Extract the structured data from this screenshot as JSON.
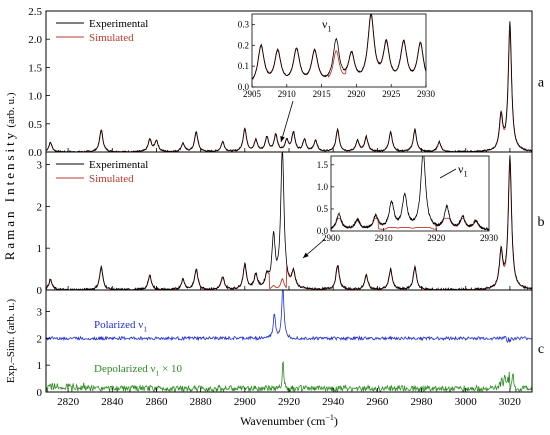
{
  "chart_data": [
    {
      "panel": "a",
      "type": "line",
      "xlim": [
        2810,
        3030
      ],
      "ylim": [
        0,
        2.5
      ],
      "yticks": [
        "0.0",
        "0.5",
        "1.0",
        "1.5",
        "2.0",
        "2.5"
      ],
      "ylabel": "(arb. u.)",
      "legend_position": "top-left",
      "series": [
        {
          "name": "Experimental",
          "color": "#000000"
        },
        {
          "name": "Simulated",
          "color": "#c0392b"
        }
      ],
      "peaks": [
        {
          "x": 2812,
          "y": 0.17
        },
        {
          "x": 2835,
          "y": 0.4
        },
        {
          "x": 2857,
          "y": 0.22
        },
        {
          "x": 2860,
          "y": 0.2
        },
        {
          "x": 2872,
          "y": 0.15
        },
        {
          "x": 2878,
          "y": 0.36
        },
        {
          "x": 2890,
          "y": 0.18
        },
        {
          "x": 2900,
          "y": 0.42
        },
        {
          "x": 2905,
          "y": 0.2
        },
        {
          "x": 2910,
          "y": 0.26
        },
        {
          "x": 2914,
          "y": 0.3
        },
        {
          "x": 2919,
          "y": 0.2
        },
        {
          "x": 2922,
          "y": 0.34
        },
        {
          "x": 2927,
          "y": 0.22
        },
        {
          "x": 2932,
          "y": 0.2
        },
        {
          "x": 2942,
          "y": 0.4
        },
        {
          "x": 2951,
          "y": 0.2
        },
        {
          "x": 2955,
          "y": 0.26
        },
        {
          "x": 2966,
          "y": 0.36
        },
        {
          "x": 2977,
          "y": 0.4
        },
        {
          "x": 2988,
          "y": 0.18
        },
        {
          "x": 3016,
          "y": 0.62
        },
        {
          "x": 3020,
          "y": 2.3
        }
      ],
      "inset": {
        "xlim": [
          2905,
          2930
        ],
        "ylim": [
          0,
          0.35
        ],
        "xticks": [
          "2905",
          "2910",
          "2915",
          "2920",
          "2925",
          "2930"
        ],
        "yticks": [
          "0.0",
          "0.1",
          "0.2",
          "0.3"
        ],
        "label": "ν",
        "label_sub": "1",
        "peaks": [
          {
            "x": 2906.3,
            "y": 0.19
          },
          {
            "x": 2908.7,
            "y": 0.16
          },
          {
            "x": 2911.4,
            "y": 0.17
          },
          {
            "x": 2914,
            "y": 0.16
          },
          {
            "x": 2917.1,
            "y": 0.21
          },
          {
            "x": 2919.3,
            "y": 0.14
          },
          {
            "x": 2922.1,
            "y": 0.33
          },
          {
            "x": 2924.3,
            "y": 0.19
          },
          {
            "x": 2926.8,
            "y": 0.2
          },
          {
            "x": 2929.2,
            "y": 0.2
          }
        ]
      }
    },
    {
      "panel": "b",
      "type": "line",
      "xlim": [
        2810,
        3030
      ],
      "ylim": [
        0,
        3.3
      ],
      "yticks": [
        "0",
        "1",
        "2",
        "3"
      ],
      "ylabel": "Raman Intensity",
      "legend_position": "top-left",
      "series": [
        {
          "name": "Experimental",
          "color": "#000000"
        },
        {
          "name": "Simulated",
          "color": "#c0392b"
        }
      ],
      "peaks": [
        {
          "x": 2812,
          "y": 0.25
        },
        {
          "x": 2835,
          "y": 0.55
        },
        {
          "x": 2857,
          "y": 0.35
        },
        {
          "x": 2872,
          "y": 0.25
        },
        {
          "x": 2878,
          "y": 0.5
        },
        {
          "x": 2890,
          "y": 0.3
        },
        {
          "x": 2900,
          "y": 0.6
        },
        {
          "x": 2905,
          "y": 0.35
        },
        {
          "x": 2910,
          "y": 0.3
        },
        {
          "x": 2913,
          "y": 1.2
        },
        {
          "x": 2917,
          "y": 3.3
        },
        {
          "x": 2922,
          "y": 0.4
        },
        {
          "x": 2942,
          "y": 0.6
        },
        {
          "x": 2955,
          "y": 0.35
        },
        {
          "x": 2966,
          "y": 0.5
        },
        {
          "x": 2977,
          "y": 0.55
        },
        {
          "x": 3016,
          "y": 0.9
        },
        {
          "x": 3020,
          "y": 3.2
        }
      ],
      "inset": {
        "xlim": [
          2900,
          2930
        ],
        "ylim": [
          0,
          1.7
        ],
        "xticks": [
          "2900",
          "2910",
          "2920",
          "2930"
        ],
        "yticks": [
          "0.0",
          "0.5",
          "1.0",
          "1.5"
        ],
        "label": "ν",
        "label_sub": "1",
        "peaks": [
          {
            "x": 2901.5,
            "y": 0.35
          },
          {
            "x": 2905,
            "y": 0.22
          },
          {
            "x": 2908.5,
            "y": 0.3
          },
          {
            "x": 2911.5,
            "y": 0.6
          },
          {
            "x": 2914,
            "y": 0.75
          },
          {
            "x": 2917.5,
            "y": 1.75
          },
          {
            "x": 2922,
            "y": 0.5
          },
          {
            "x": 2925,
            "y": 0.28
          },
          {
            "x": 2927.5,
            "y": 0.2
          }
        ]
      }
    },
    {
      "panel": "c",
      "type": "line",
      "xlim": [
        2810,
        3030
      ],
      "ylim": [
        0,
        3.8
      ],
      "yticks": [
        "0",
        "1",
        "2",
        "3"
      ],
      "ylabel": "Exp.–Sim. (arb. u.)",
      "xlabel": "Wavenumber (cm",
      "xlabel_sup": "−1",
      "xlabel_close": ")",
      "xticks": [
        "2820",
        "2840",
        "2860",
        "2880",
        "2900",
        "2920",
        "2940",
        "2960",
        "2980",
        "3000",
        "3020"
      ],
      "series": [
        {
          "name": "Polarized ν",
          "sub": "1",
          "color": "#1f2fd6",
          "offset": 2.0
        },
        {
          "name": "Depolarized ν",
          "sub": "1",
          "suffix": " × 10",
          "color": "#2e8b22",
          "offset": 0.0
        }
      ]
    }
  ],
  "panel_letters": [
    "a",
    "b",
    "c"
  ],
  "colors": {
    "experimental": "#000000",
    "simulated": "#c0392b",
    "polarized": "#1f2fd6",
    "depolarized": "#2e8b22"
  }
}
